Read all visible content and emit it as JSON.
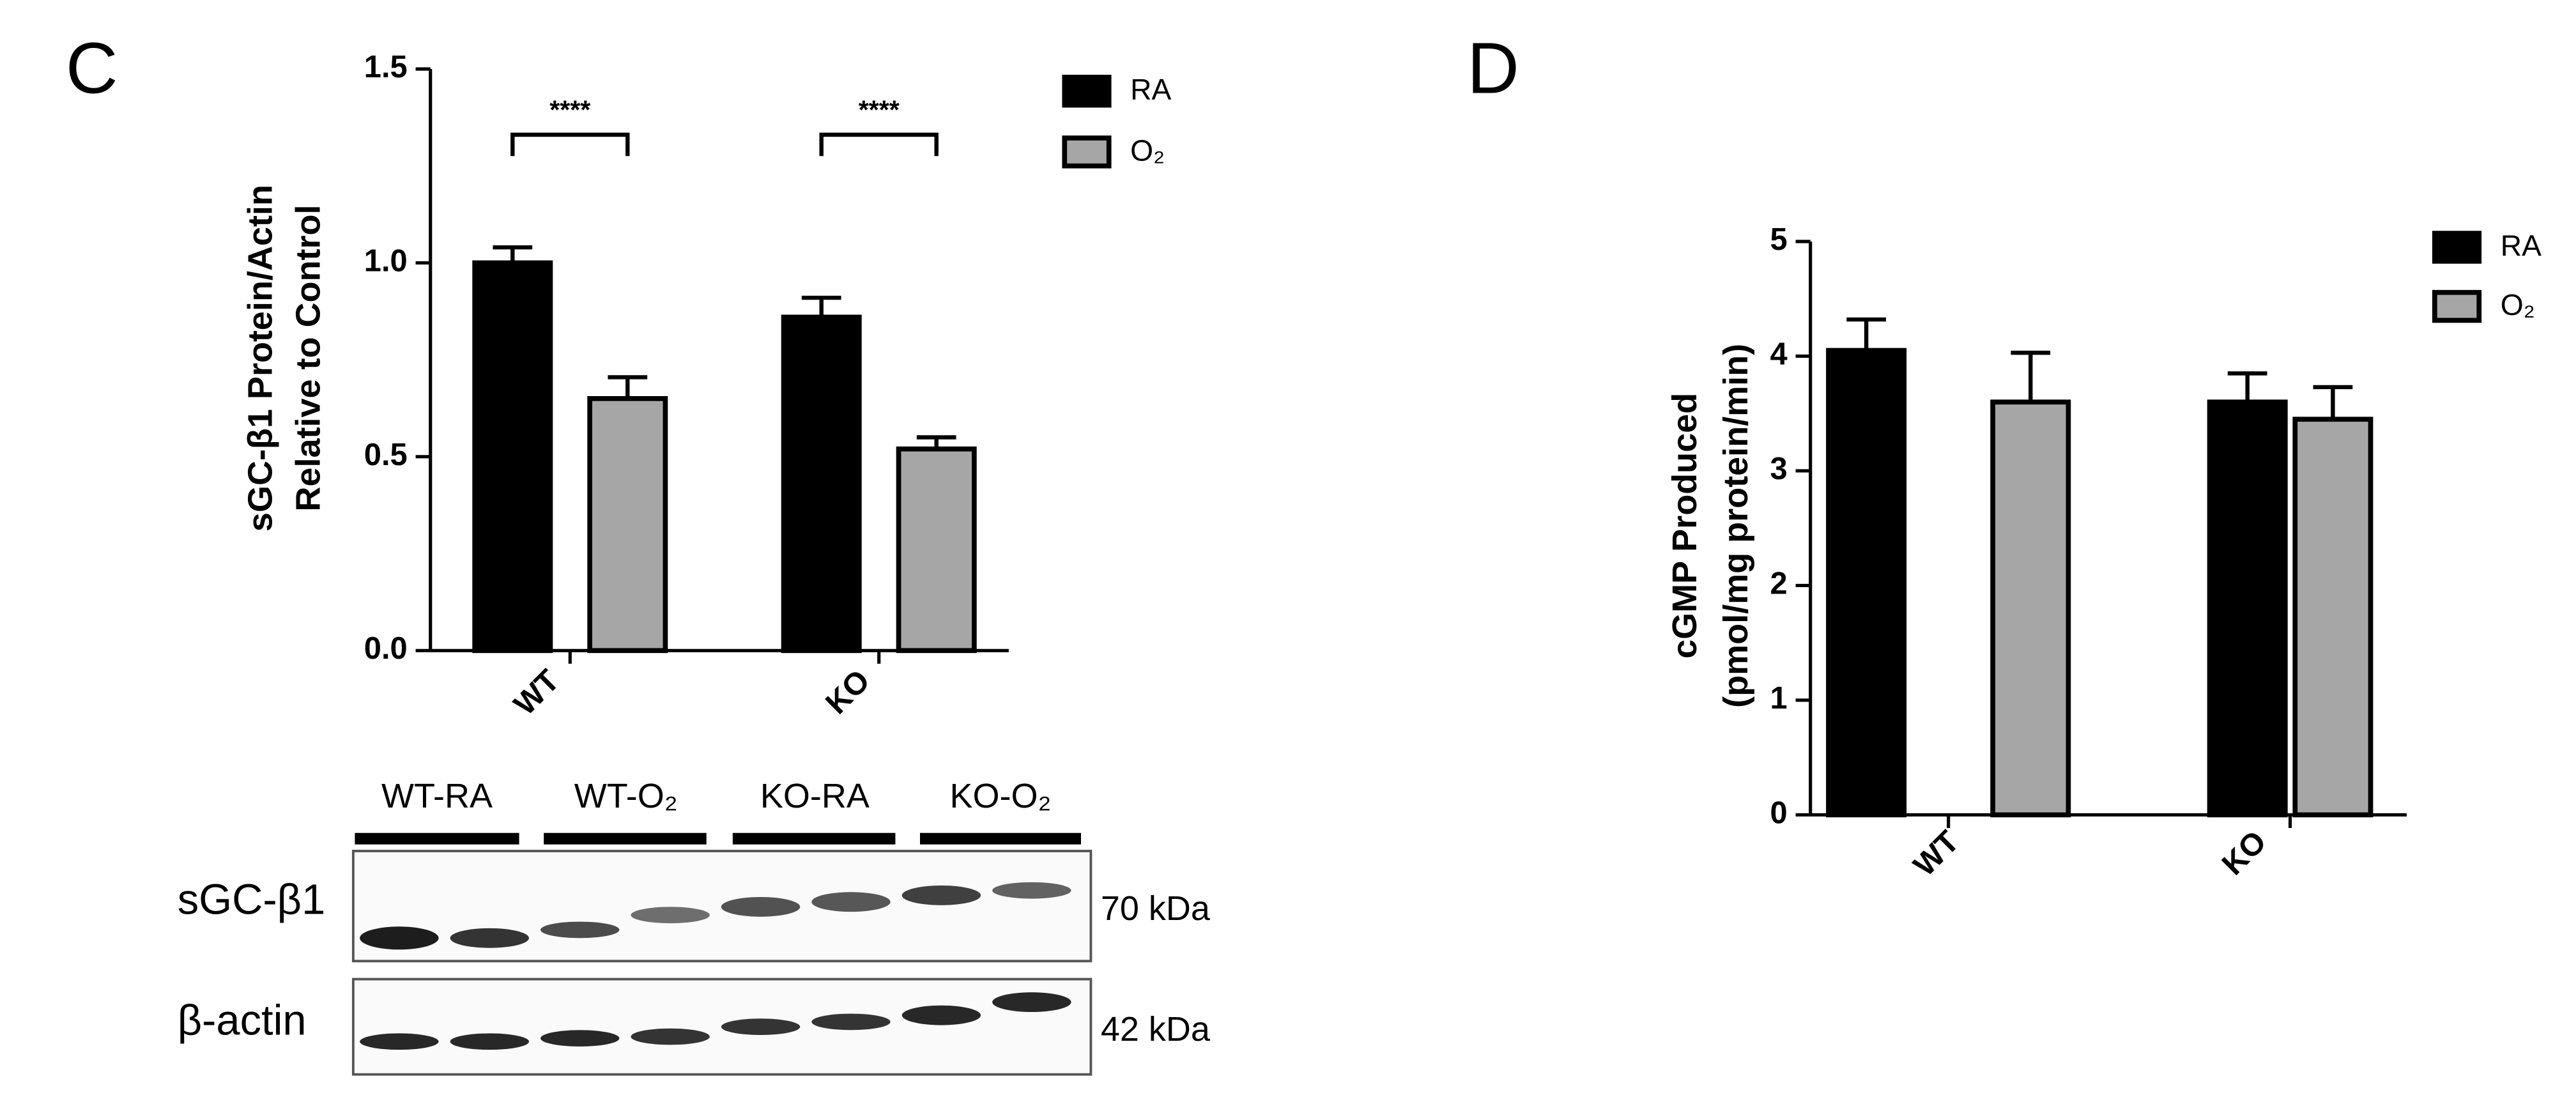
{
  "chart_data": [
    {
      "type": "bar",
      "panel": "C",
      "ylabel": [
        "sGC-β1 Protein/Actin",
        "Relative to Control"
      ],
      "categories": [
        "WT",
        "KO"
      ],
      "series": [
        {
          "name": "RA",
          "color": "#000000",
          "values": [
            1.0,
            0.86
          ],
          "errors": [
            0.04,
            0.05
          ]
        },
        {
          "name": "O₂",
          "color": "#a6a6a6",
          "values": [
            0.65,
            0.52
          ],
          "errors": [
            0.055,
            0.03
          ]
        }
      ],
      "ylim": [
        0,
        1.5
      ],
      "yticks": [
        {
          "value": 0,
          "label": "0.0"
        },
        {
          "value": 0.5,
          "label": "0.5"
        },
        {
          "value": 1,
          "label": "1.0"
        },
        {
          "value": 1.5,
          "label": "1.5"
        }
      ],
      "annotations": [
        "****",
        "****"
      ]
    },
    {
      "type": "bar",
      "panel": "D",
      "ylabel": [
        "cGMP Produced",
        "(pmol/mg protein/min)"
      ],
      "categories": [
        "WT",
        "KO"
      ],
      "series": [
        {
          "name": "RA",
          "color": "#000000",
          "values": [
            4.05,
            3.6
          ],
          "errors": [
            0.27,
            0.25
          ]
        },
        {
          "name": "O₂",
          "color": "#a6a6a6",
          "values": [
            3.6,
            3.45
          ],
          "errors": [
            0.43,
            0.28
          ]
        }
      ],
      "ylim": [
        0,
        5
      ],
      "yticks": [
        0,
        1,
        2,
        3,
        4,
        5
      ]
    }
  ],
  "blot": {
    "lanes": [
      "WT-RA",
      "WT-O₂",
      "KO-RA",
      "KO-O₂"
    ],
    "rows": [
      {
        "label": "sGC-β1",
        "size": "70 kDa"
      },
      {
        "label": "β-actin",
        "size": "42 kDa"
      }
    ]
  }
}
